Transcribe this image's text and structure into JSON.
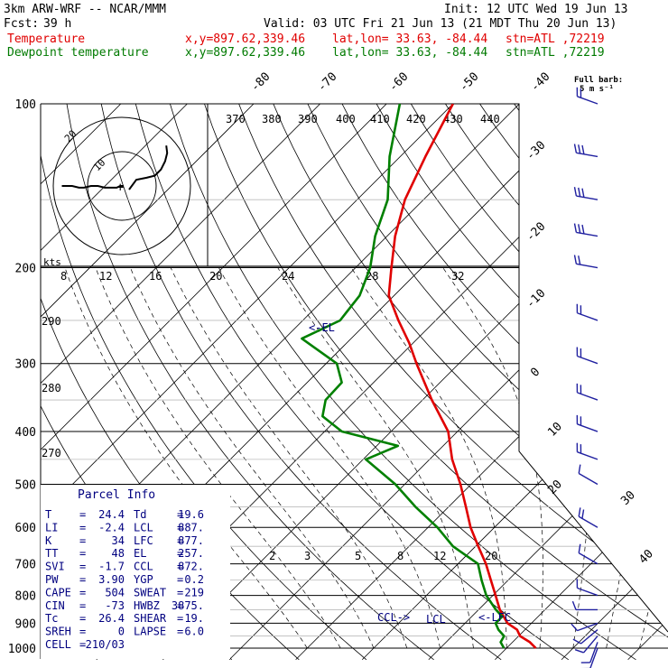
{
  "header": {
    "model": "3km ARW-WRF -- NCAR/MMM",
    "fcst_label": "Fcst:",
    "fcst_value": "39 h",
    "init": "Init: 12 UTC Wed 19 Jun 13",
    "valid": "Valid: 03 UTC Fri 21 Jun 13 (21 MDT Thu 20 Jun 13)",
    "temp_label": "Temperature",
    "dew_label": "Dewpoint temperature",
    "xy": "x,y=897.62,339.46",
    "latlon": "lat,lon= 33.63, -84.44",
    "stn": "stn=ATL ,72219",
    "full_barb_1": "Full barb:",
    "full_barb_2": "5 m s⁻¹"
  },
  "colors": {
    "temperature": "#e00000",
    "dewpoint": "#008000",
    "barbs": "#2020a0",
    "annotations": "#000080"
  },
  "parcel_info": {
    "title": "Parcel Info",
    "rows": [
      [
        "T",
        "24.4",
        "Td",
        "19.6"
      ],
      [
        "LI",
        "-2.4",
        "LCL",
        "887."
      ],
      [
        "K",
        "34",
        "LFC",
        "877."
      ],
      [
        "TT",
        "48",
        "EL",
        "257."
      ],
      [
        "SVI",
        "-1.7",
        "CCL",
        "872."
      ],
      [
        "PW",
        "3.90",
        "YGP",
        "0.2"
      ],
      [
        "CAPE",
        "504",
        "SWEAT",
        "219"
      ],
      [
        "CIN",
        "-73",
        "HWBZ",
        "3875."
      ],
      [
        "Tc",
        "26.4",
        "SHEAR",
        "19."
      ],
      [
        "SREH",
        "0",
        "LAPSE",
        "6.0"
      ],
      [
        "CELL",
        "210/03",
        "",
        ""
      ]
    ]
  },
  "annotations": {
    "el": "<-EL",
    "ccl": "CCL->",
    "lcl": "LCL",
    "lfc": "<-LFC",
    "hodo_kts": "kts",
    "hodo_ring_outer": "20",
    "hodo_ring_inner": "10",
    "hodo_plus": "+"
  },
  "chart_data": {
    "type": "line",
    "pressure_levels": [
      "100",
      "200",
      "300",
      "400",
      "500",
      "600",
      "700",
      "800",
      "900",
      "1000"
    ],
    "temperature_ticks_top": [
      "-80",
      "-70",
      "-60",
      "-50",
      "-40"
    ],
    "temperature_ticks_right": [
      "-30",
      "-20",
      "-10",
      "0",
      "10",
      "20",
      "30",
      "40"
    ],
    "theta_e_labels": [
      "370",
      "380",
      "390",
      "400",
      "410",
      "420",
      "430",
      "440"
    ],
    "mixing_ratio_labels": [
      "8",
      "12",
      "16",
      "20",
      "24",
      "28",
      "32"
    ],
    "mixing_ratio_labels_low": [
      "2",
      "3",
      "5",
      "8",
      "12",
      "20"
    ],
    "dry_adiabat_labels": [
      "290",
      "280",
      "270"
    ],
    "series": [
      {
        "name": "Temperature",
        "p": [
          1000,
          975,
          950,
          925,
          900,
          875,
          850,
          800,
          750,
          700,
          650,
          600,
          550,
          500,
          450,
          400,
          350,
          300,
          275,
          250,
          225,
          200,
          175,
          150,
          125,
          100
        ],
        "t": [
          24.4,
          22.6,
          20.2,
          18.8,
          16.4,
          14.8,
          13.2,
          10.4,
          7.4,
          4.2,
          0.4,
          -3.6,
          -7.4,
          -11.6,
          -16.6,
          -21.4,
          -28.6,
          -36.4,
          -40.6,
          -45.6,
          -50.8,
          -54.6,
          -58.8,
          -62.8,
          -66.2,
          -70.0
        ]
      },
      {
        "name": "Dewpoint temperature",
        "p": [
          1000,
          975,
          950,
          925,
          900,
          875,
          850,
          800,
          750,
          700,
          650,
          600,
          550,
          500,
          450,
          425,
          400,
          375,
          350,
          325,
          300,
          270,
          250,
          225,
          200,
          175,
          150,
          125,
          100
        ],
        "t": [
          19.6,
          18.2,
          17.8,
          16.0,
          14.6,
          14.6,
          12.6,
          9.0,
          6.0,
          3.0,
          -3.4,
          -8.6,
          -15.0,
          -21.4,
          -29.6,
          -26.8,
          -37.4,
          -42.6,
          -44.6,
          -44.8,
          -48.4,
          -57.4,
          -54.4,
          -55.2,
          -57.8,
          -61.8,
          -65.4,
          -71.6,
          -78.0
        ]
      }
    ],
    "wind_barbs": [
      {
        "p": 1000,
        "dir": 200,
        "spd": 5
      },
      {
        "p": 975,
        "dir": 200,
        "spd": 5
      },
      {
        "p": 950,
        "dir": 220,
        "spd": 5
      },
      {
        "p": 925,
        "dir": 230,
        "spd": 5
      },
      {
        "p": 900,
        "dir": 250,
        "spd": 5
      },
      {
        "p": 850,
        "dir": 270,
        "spd": 5
      },
      {
        "p": 800,
        "dir": 290,
        "spd": 5
      },
      {
        "p": 700,
        "dir": 300,
        "spd": 5
      },
      {
        "p": 600,
        "dir": 300,
        "spd": 10
      },
      {
        "p": 500,
        "dir": 300,
        "spd": 5
      },
      {
        "p": 450,
        "dir": 290,
        "spd": 10
      },
      {
        "p": 400,
        "dir": 290,
        "spd": 10
      },
      {
        "p": 350,
        "dir": 290,
        "spd": 10
      },
      {
        "p": 300,
        "dir": 290,
        "spd": 10
      },
      {
        "p": 250,
        "dir": 290,
        "spd": 10
      },
      {
        "p": 200,
        "dir": 280,
        "spd": 10
      },
      {
        "p": 175,
        "dir": 280,
        "spd": 15
      },
      {
        "p": 150,
        "dir": 280,
        "spd": 15
      },
      {
        "p": 125,
        "dir": 280,
        "spd": 15
      },
      {
        "p": 100,
        "dir": 290,
        "spd": 10
      }
    ],
    "hodograph": {
      "u": [
        0.5,
        -0.5,
        -1.5,
        -3.5,
        -5.0,
        -7.0,
        -9.0,
        -11.0,
        -12.5,
        -14.5,
        -16.0,
        -17.5
      ],
      "v": [
        0.0,
        0.0,
        -0.5,
        -0.5,
        -0.5,
        0.0,
        0.0,
        -0.5,
        -0.5,
        0.0,
        0.0,
        0.0
      ],
      "u2": [
        3.5,
        6.0,
        8.0,
        9.5,
        10.5,
        11.0,
        10.8
      ],
      "v2": [
        1.5,
        2.0,
        2.5,
        4.0,
        6.0,
        8.0,
        9.8
      ]
    }
  }
}
